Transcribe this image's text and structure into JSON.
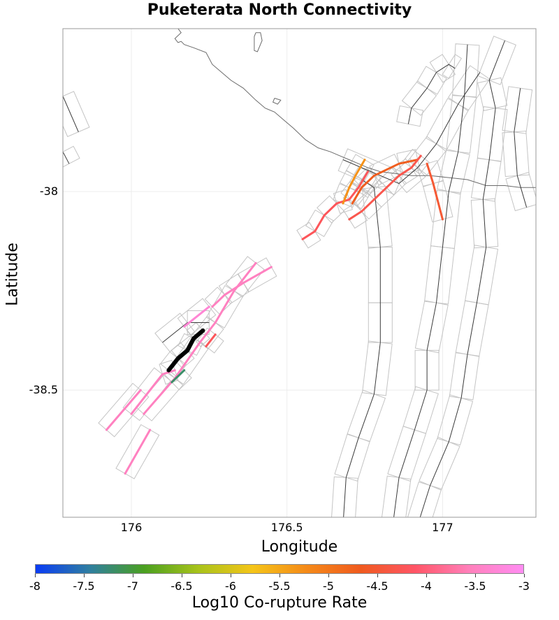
{
  "title": "Puketerata North Connectivity",
  "chart_data": {
    "type": "map",
    "title": "Puketerata North Connectivity",
    "xlabel": "Longitude",
    "ylabel": "Latitude",
    "xlim": [
      175.78,
      177.3
    ],
    "ylim": [
      -38.82,
      -37.59
    ],
    "x_ticks": [
      {
        "value": 176,
        "label": "176"
      },
      {
        "value": 176.5,
        "label": "176.5"
      },
      {
        "value": 177,
        "label": "177"
      }
    ],
    "y_ticks": [
      {
        "value": -38,
        "label": "-38"
      },
      {
        "value": -38.5,
        "label": "-38.5"
      }
    ],
    "grid": true,
    "colorbar": {
      "label": "Log10 Co-rupture Rate",
      "min": -8,
      "max": -3,
      "ticks": [
        "-8",
        "-7.5",
        "-7",
        "-6.5",
        "-6",
        "-5.5",
        "-5",
        "-4.5",
        "-4",
        "-3.5",
        "-3"
      ],
      "colors": [
        "#0a3cf5",
        "#2f7fa0",
        "#4aa020",
        "#a8c31a",
        "#f5c518",
        "#f58a18",
        "#f05a1e",
        "#ff5566",
        "#ff80bb",
        "#ff8cf2"
      ]
    },
    "coastline": [
      [
        176.15,
        -37.59
      ],
      [
        176.16,
        -37.6
      ],
      [
        176.14,
        -37.615
      ],
      [
        176.15,
        -37.625
      ],
      [
        176.16,
        -37.622
      ],
      [
        176.17,
        -37.63
      ],
      [
        176.2,
        -37.638
      ],
      [
        176.24,
        -37.65
      ],
      [
        176.26,
        -37.68
      ],
      [
        176.29,
        -37.7
      ],
      [
        176.32,
        -37.72
      ],
      [
        176.36,
        -37.74
      ],
      [
        176.4,
        -37.77
      ],
      [
        176.43,
        -37.79
      ],
      [
        176.46,
        -37.8
      ],
      [
        176.49,
        -37.82
      ],
      [
        176.52,
        -37.84
      ],
      [
        176.56,
        -37.87
      ],
      [
        176.6,
        -37.89
      ],
      [
        176.64,
        -37.9
      ],
      [
        176.67,
        -37.91
      ],
      [
        176.7,
        -37.92
      ],
      [
        176.73,
        -37.93
      ],
      [
        176.76,
        -37.94
      ],
      [
        176.8,
        -37.95
      ],
      [
        176.85,
        -37.955
      ],
      [
        176.9,
        -37.96
      ],
      [
        176.96,
        -37.96
      ],
      [
        177.02,
        -37.965
      ],
      [
        177.08,
        -37.97
      ],
      [
        177.14,
        -37.985
      ],
      [
        177.2,
        -37.985
      ],
      [
        177.25,
        -37.99
      ],
      [
        177.3,
        -37.99
      ]
    ],
    "island": [
      [
        176.4,
        -37.6
      ],
      [
        176.415,
        -37.6
      ],
      [
        176.42,
        -37.62
      ],
      [
        176.405,
        -37.648
      ],
      [
        176.395,
        -37.645
      ],
      [
        176.395,
        -37.61
      ],
      [
        176.4,
        -37.6
      ]
    ],
    "islet": [
      [
        176.46,
        -37.765
      ],
      [
        176.48,
        -37.77
      ],
      [
        176.47,
        -37.78
      ],
      [
        176.455,
        -37.775
      ],
      [
        176.46,
        -37.765
      ]
    ],
    "fault_traces": [
      [
        [
          176.68,
          -38.84
        ],
        [
          176.69,
          -38.72
        ],
        [
          176.73,
          -38.62
        ],
        [
          176.78,
          -38.51
        ],
        [
          176.8,
          -38.38
        ],
        [
          176.8,
          -38.28
        ],
        [
          176.8,
          -38.14
        ],
        [
          176.78,
          -37.99
        ],
        [
          176.74,
          -37.97
        ]
      ],
      [
        [
          176.84,
          -38.84
        ],
        [
          176.86,
          -38.72
        ],
        [
          176.91,
          -38.6
        ],
        [
          176.95,
          -38.5
        ],
        [
          176.95,
          -38.4
        ],
        [
          176.98,
          -38.28
        ],
        [
          177.0,
          -38.14
        ],
        [
          177.02,
          -38.0
        ],
        [
          177.05,
          -37.9
        ],
        [
          177.07,
          -37.76
        ],
        [
          177.08,
          -37.63
        ]
      ],
      [
        [
          176.92,
          -38.84
        ],
        [
          176.96,
          -38.74
        ],
        [
          177.02,
          -38.63
        ],
        [
          177.06,
          -38.52
        ],
        [
          177.08,
          -38.41
        ],
        [
          177.11,
          -38.28
        ],
        [
          177.14,
          -38.14
        ],
        [
          177.13,
          -38.02
        ],
        [
          177.15,
          -37.92
        ],
        [
          177.17,
          -37.79
        ],
        [
          177.15,
          -37.72
        ],
        [
          177.2,
          -37.62
        ]
      ],
      [
        [
          176.89,
          -37.83
        ],
        [
          176.9,
          -37.79
        ],
        [
          176.95,
          -37.74
        ],
        [
          176.98,
          -37.7
        ],
        [
          177.02,
          -37.68
        ],
        [
          177.04,
          -37.69
        ]
      ],
      [
        [
          177.25,
          -37.74
        ],
        [
          177.23,
          -37.85
        ],
        [
          177.24,
          -37.96
        ],
        [
          177.27,
          -38.04
        ]
      ],
      [
        [
          175.78,
          -37.76
        ],
        [
          175.83,
          -37.85
        ]
      ],
      [
        [
          175.78,
          -37.9
        ],
        [
          175.8,
          -37.93
        ]
      ],
      [
        [
          176.68,
          -37.92
        ],
        [
          176.86,
          -37.98
        ],
        [
          176.92,
          -37.94
        ],
        [
          176.98,
          -37.88
        ],
        [
          177.05,
          -37.78
        ],
        [
          177.12,
          -37.7
        ]
      ],
      [
        [
          176.1,
          -38.38
        ],
        [
          176.18,
          -38.33
        ],
        [
          176.25,
          -38.33
        ]
      ]
    ],
    "rupture_segments": [
      {
        "value": -3.5,
        "points": [
          [
            175.92,
            -38.6
          ],
          [
            176.03,
            -38.5
          ]
        ]
      },
      {
        "value": -3.5,
        "points": [
          [
            175.98,
            -38.71
          ],
          [
            176.06,
            -38.6
          ]
        ]
      },
      {
        "value": -3.5,
        "points": [
          [
            176.0,
            -38.56
          ],
          [
            176.1,
            -38.46
          ],
          [
            176.14,
            -38.45
          ]
        ]
      },
      {
        "value": -3.5,
        "points": [
          [
            176.04,
            -38.56
          ],
          [
            176.14,
            -38.47
          ],
          [
            176.22,
            -38.38
          ],
          [
            176.27,
            -38.33
          ],
          [
            176.33,
            -38.25
          ],
          [
            176.4,
            -38.18
          ]
        ]
      },
      {
        "value": -3.5,
        "points": [
          [
            176.26,
            -38.29
          ],
          [
            176.3,
            -38.26
          ],
          [
            176.36,
            -38.23
          ],
          [
            176.45,
            -38.19
          ]
        ]
      },
      {
        "value": -3.3,
        "points": [
          [
            176.17,
            -38.34
          ],
          [
            176.25,
            -38.29
          ]
        ]
      },
      {
        "value": -4.2,
        "points": [
          [
            176.24,
            -38.39
          ],
          [
            176.27,
            -38.36
          ]
        ]
      },
      {
        "value": -7.2,
        "points": [
          [
            176.13,
            -38.48
          ],
          [
            176.17,
            -38.45
          ]
        ]
      },
      {
        "value": -4.2,
        "points": [
          [
            176.55,
            -38.12
          ],
          [
            176.59,
            -38.1
          ],
          [
            176.62,
            -38.06
          ],
          [
            176.66,
            -38.03
          ],
          [
            176.7,
            -38.02
          ],
          [
            176.73,
            -37.99
          ],
          [
            176.76,
            -37.95
          ]
        ]
      },
      {
        "value": -5.3,
        "points": [
          [
            176.68,
            -38.03
          ],
          [
            176.7,
            -37.99
          ],
          [
            176.72,
            -37.96
          ],
          [
            176.75,
            -37.92
          ]
        ]
      },
      {
        "value": -4.7,
        "points": [
          [
            176.71,
            -38.03
          ],
          [
            176.74,
            -37.99
          ],
          [
            176.78,
            -37.96
          ],
          [
            176.86,
            -37.93
          ],
          [
            176.92,
            -37.92
          ]
        ]
      },
      {
        "value": -4.3,
        "points": [
          [
            176.7,
            -38.07
          ],
          [
            176.74,
            -38.05
          ],
          [
            176.78,
            -38.02
          ],
          [
            176.82,
            -37.99
          ],
          [
            176.86,
            -37.96
          ],
          [
            176.9,
            -37.94
          ],
          [
            176.93,
            -37.91
          ]
        ]
      },
      {
        "value": -4.5,
        "points": [
          [
            176.95,
            -37.93
          ],
          [
            176.97,
            -37.98
          ],
          [
            177.0,
            -38.07
          ]
        ]
      }
    ],
    "selected_fault": {
      "name": "Puketerata North",
      "points": [
        [
          176.12,
          -38.45
        ],
        [
          176.15,
          -38.42
        ],
        [
          176.18,
          -38.4
        ],
        [
          176.2,
          -38.37
        ],
        [
          176.23,
          -38.35
        ]
      ]
    }
  }
}
